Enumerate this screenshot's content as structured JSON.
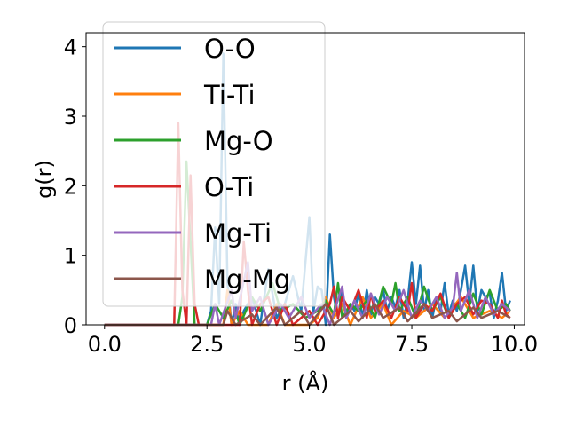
{
  "chart_data": {
    "type": "line",
    "title": "",
    "xlabel": "r (Å)",
    "ylabel": "g(r)",
    "xlim": [
      -0.45,
      10.25
    ],
    "ylim": [
      0,
      4.2
    ],
    "xticks": [
      "0.0",
      "2.5",
      "5.0",
      "7.5",
      "10.0"
    ],
    "xtick_values": [
      0,
      2.5,
      5.0,
      7.5,
      10.0
    ],
    "yticks": [
      "0",
      "1",
      "2",
      "3",
      "4"
    ],
    "ytick_values": [
      0,
      1,
      2,
      3,
      4
    ],
    "grid": false,
    "legend_position": "top-left",
    "series": [
      {
        "name": "O-O",
        "color": "#1f77b4",
        "points": [
          [
            0,
            0
          ],
          [
            2.5,
            0
          ],
          [
            2.6,
            0.2
          ],
          [
            2.7,
            1.4
          ],
          [
            2.8,
            0.3
          ],
          [
            2.9,
            3.9
          ],
          [
            3.0,
            0.6
          ],
          [
            3.1,
            0
          ],
          [
            3.2,
            0.3
          ],
          [
            3.3,
            0
          ],
          [
            3.4,
            0.2
          ],
          [
            3.6,
            0.4
          ],
          [
            3.8,
            0
          ],
          [
            4.0,
            0.8
          ],
          [
            4.2,
            0.1
          ],
          [
            4.4,
            0.3
          ],
          [
            4.6,
            0.7
          ],
          [
            4.8,
            0.2
          ],
          [
            5.0,
            1.55
          ],
          [
            5.1,
            0.2
          ],
          [
            5.2,
            0.55
          ],
          [
            5.3,
            0.5
          ],
          [
            5.4,
            0
          ],
          [
            5.5,
            1.3
          ],
          [
            5.6,
            0.4
          ],
          [
            5.7,
            0.1
          ],
          [
            5.8,
            0.5
          ],
          [
            5.9,
            0.1
          ],
          [
            6.0,
            0.3
          ],
          [
            6.1,
            0.2
          ],
          [
            6.2,
            0.45
          ],
          [
            6.3,
            0.1
          ],
          [
            6.4,
            0.5
          ],
          [
            6.5,
            0.15
          ],
          [
            6.6,
            0.4
          ],
          [
            6.7,
            0.3
          ],
          [
            6.8,
            0.5
          ],
          [
            6.9,
            0.2
          ],
          [
            7.0,
            0.4
          ],
          [
            7.1,
            0.25
          ],
          [
            7.2,
            0.5
          ],
          [
            7.3,
            0.1
          ],
          [
            7.4,
            0.35
          ],
          [
            7.5,
            0.9
          ],
          [
            7.6,
            0.3
          ],
          [
            7.7,
            0.85
          ],
          [
            7.8,
            0.2
          ],
          [
            7.9,
            0.5
          ],
          [
            8.0,
            0.1
          ],
          [
            8.1,
            0.4
          ],
          [
            8.2,
            0.2
          ],
          [
            8.3,
            0.6
          ],
          [
            8.4,
            0.15
          ],
          [
            8.5,
            0.35
          ],
          [
            8.6,
            0.2
          ],
          [
            8.7,
            0.5
          ],
          [
            8.8,
            0.85
          ],
          [
            8.9,
            0.3
          ],
          [
            9.0,
            0.85
          ],
          [
            9.1,
            0.2
          ],
          [
            9.2,
            0.5
          ],
          [
            9.3,
            0.4
          ],
          [
            9.4,
            0.45
          ],
          [
            9.5,
            0.1
          ],
          [
            9.6,
            0.35
          ],
          [
            9.7,
            0.75
          ],
          [
            9.8,
            0.2
          ],
          [
            9.9,
            0.35
          ]
        ]
      },
      {
        "name": "Ti-Ti",
        "color": "#ff7f0e",
        "points": [
          [
            0,
            0
          ],
          [
            2.9,
            0
          ],
          [
            3.0,
            0.5
          ],
          [
            3.1,
            0
          ],
          [
            3.3,
            0.2
          ],
          [
            3.5,
            0
          ],
          [
            4.0,
            0
          ],
          [
            4.2,
            0.3
          ],
          [
            4.4,
            0
          ],
          [
            5.0,
            0
          ],
          [
            5.2,
            0.1
          ],
          [
            5.4,
            0.4
          ],
          [
            5.6,
            0.1
          ],
          [
            5.8,
            0.3
          ],
          [
            6.0,
            0
          ],
          [
            6.3,
            0.4
          ],
          [
            6.5,
            0.1
          ],
          [
            6.8,
            0.3
          ],
          [
            7.0,
            0
          ],
          [
            7.3,
            0.2
          ],
          [
            7.6,
            0.1
          ],
          [
            8.0,
            0.3
          ],
          [
            8.3,
            0.1
          ],
          [
            8.7,
            0.4
          ],
          [
            9.0,
            0.1
          ],
          [
            9.4,
            0.2
          ],
          [
            9.7,
            0.1
          ],
          [
            9.9,
            0.2
          ]
        ]
      },
      {
        "name": "Mg-O",
        "color": "#2ca02c",
        "points": [
          [
            0,
            0
          ],
          [
            1.8,
            0
          ],
          [
            1.9,
            0.4
          ],
          [
            2.0,
            2.35
          ],
          [
            2.1,
            1.2
          ],
          [
            2.2,
            0
          ],
          [
            2.5,
            0
          ],
          [
            2.7,
            0.3
          ],
          [
            2.9,
            0.1
          ],
          [
            3.1,
            0.35
          ],
          [
            3.3,
            0
          ],
          [
            3.6,
            0.4
          ],
          [
            3.8,
            0.2
          ],
          [
            4.1,
            0.6
          ],
          [
            4.3,
            0.2
          ],
          [
            4.6,
            0.3
          ],
          [
            4.9,
            0.1
          ],
          [
            5.2,
            0.2
          ],
          [
            5.4,
            0.35
          ],
          [
            5.6,
            0.15
          ],
          [
            5.7,
            0.6
          ],
          [
            5.8,
            0.1
          ],
          [
            6.0,
            0.3
          ],
          [
            6.2,
            0.2
          ],
          [
            6.4,
            0.35
          ],
          [
            6.6,
            0.1
          ],
          [
            6.8,
            0.55
          ],
          [
            7.0,
            0.3
          ],
          [
            7.1,
            0.6
          ],
          [
            7.2,
            0.2
          ],
          [
            7.4,
            0.4
          ],
          [
            7.6,
            0.1
          ],
          [
            7.8,
            0.55
          ],
          [
            8.0,
            0.2
          ],
          [
            8.2,
            0.4
          ],
          [
            8.4,
            0.1
          ],
          [
            8.6,
            0.3
          ],
          [
            8.8,
            0.1
          ],
          [
            9.0,
            0.45
          ],
          [
            9.2,
            0.15
          ],
          [
            9.4,
            0.5
          ],
          [
            9.6,
            0.2
          ],
          [
            9.8,
            0.3
          ],
          [
            9.9,
            0.2
          ]
        ]
      },
      {
        "name": "O-Ti",
        "color": "#d62728",
        "points": [
          [
            0,
            0
          ],
          [
            1.7,
            0
          ],
          [
            1.8,
            2.9
          ],
          [
            1.9,
            0.5
          ],
          [
            2.0,
            0
          ],
          [
            2.1,
            2.15
          ],
          [
            2.2,
            0.3
          ],
          [
            2.3,
            0
          ],
          [
            3.3,
            0
          ],
          [
            3.4,
            1.2
          ],
          [
            3.5,
            0.5
          ],
          [
            3.6,
            0
          ],
          [
            3.8,
            0.3
          ],
          [
            4.0,
            0.4
          ],
          [
            4.2,
            0
          ],
          [
            4.4,
            0.3
          ],
          [
            4.6,
            0
          ],
          [
            5.0,
            0.2
          ],
          [
            5.2,
            0
          ],
          [
            5.5,
            0.3
          ],
          [
            5.6,
            0.55
          ],
          [
            5.7,
            0.1
          ],
          [
            5.8,
            0.4
          ],
          [
            6.0,
            0.2
          ],
          [
            6.2,
            0.5
          ],
          [
            6.4,
            0.1
          ],
          [
            6.5,
            0.45
          ],
          [
            6.6,
            0.2
          ],
          [
            6.8,
            0.35
          ],
          [
            7.0,
            0.1
          ],
          [
            7.2,
            0.4
          ],
          [
            7.4,
            0.2
          ],
          [
            7.5,
            0.6
          ],
          [
            7.6,
            0.1
          ],
          [
            7.8,
            0.3
          ],
          [
            8.0,
            0.2
          ],
          [
            8.2,
            0.45
          ],
          [
            8.4,
            0.1
          ],
          [
            8.6,
            0.3
          ],
          [
            8.8,
            0.4
          ],
          [
            9.0,
            0.15
          ],
          [
            9.2,
            0.35
          ],
          [
            9.4,
            0.3
          ],
          [
            9.6,
            0.1
          ],
          [
            9.7,
            0.35
          ],
          [
            9.8,
            0.15
          ],
          [
            9.9,
            0.1
          ]
        ]
      },
      {
        "name": "Mg-Ti",
        "color": "#9467bd",
        "points": [
          [
            0,
            0
          ],
          [
            2.6,
            0
          ],
          [
            2.7,
            0.3
          ],
          [
            2.8,
            0
          ],
          [
            3.1,
            0.5
          ],
          [
            3.2,
            0.1
          ],
          [
            3.5,
            0.9
          ],
          [
            3.6,
            0.2
          ],
          [
            3.8,
            0.4
          ],
          [
            4.0,
            0
          ],
          [
            4.3,
            0.3
          ],
          [
            4.5,
            0.1
          ],
          [
            4.8,
            0.4
          ],
          [
            5.0,
            0.1
          ],
          [
            5.3,
            0.3
          ],
          [
            5.5,
            0
          ],
          [
            5.8,
            0.55
          ],
          [
            5.9,
            0.1
          ],
          [
            6.1,
            0.35
          ],
          [
            6.3,
            0.1
          ],
          [
            6.5,
            0.45
          ],
          [
            6.7,
            0.15
          ],
          [
            6.9,
            0.4
          ],
          [
            7.1,
            0.2
          ],
          [
            7.3,
            0.5
          ],
          [
            7.5,
            0.1
          ],
          [
            7.7,
            0.35
          ],
          [
            7.9,
            0.2
          ],
          [
            8.1,
            0.4
          ],
          [
            8.3,
            0.1
          ],
          [
            8.5,
            0.25
          ],
          [
            8.6,
            0.75
          ],
          [
            8.7,
            0.2
          ],
          [
            8.9,
            0.5
          ],
          [
            9.1,
            0.1
          ],
          [
            9.3,
            0.4
          ],
          [
            9.5,
            0.15
          ],
          [
            9.7,
            0.3
          ],
          [
            9.9,
            0.2
          ]
        ]
      },
      {
        "name": "Mg-Mg",
        "color": "#8c564b",
        "points": [
          [
            0,
            0
          ],
          [
            2.9,
            0
          ],
          [
            3.0,
            0.2
          ],
          [
            3.2,
            0
          ],
          [
            3.6,
            0.15
          ],
          [
            3.8,
            0
          ],
          [
            4.2,
            0.25
          ],
          [
            4.4,
            0
          ],
          [
            4.8,
            0.2
          ],
          [
            5.0,
            0
          ],
          [
            5.4,
            0.3
          ],
          [
            5.6,
            0
          ],
          [
            6.0,
            0.2
          ],
          [
            6.2,
            0.05
          ],
          [
            6.6,
            0.3
          ],
          [
            6.8,
            0.1
          ],
          [
            7.2,
            0.25
          ],
          [
            7.4,
            0.05
          ],
          [
            7.8,
            0.3
          ],
          [
            8.0,
            0.1
          ],
          [
            8.4,
            0.2
          ],
          [
            8.6,
            0.05
          ],
          [
            9.0,
            0.25
          ],
          [
            9.2,
            0.1
          ],
          [
            9.6,
            0.2
          ],
          [
            9.9,
            0.1
          ]
        ]
      }
    ]
  }
}
